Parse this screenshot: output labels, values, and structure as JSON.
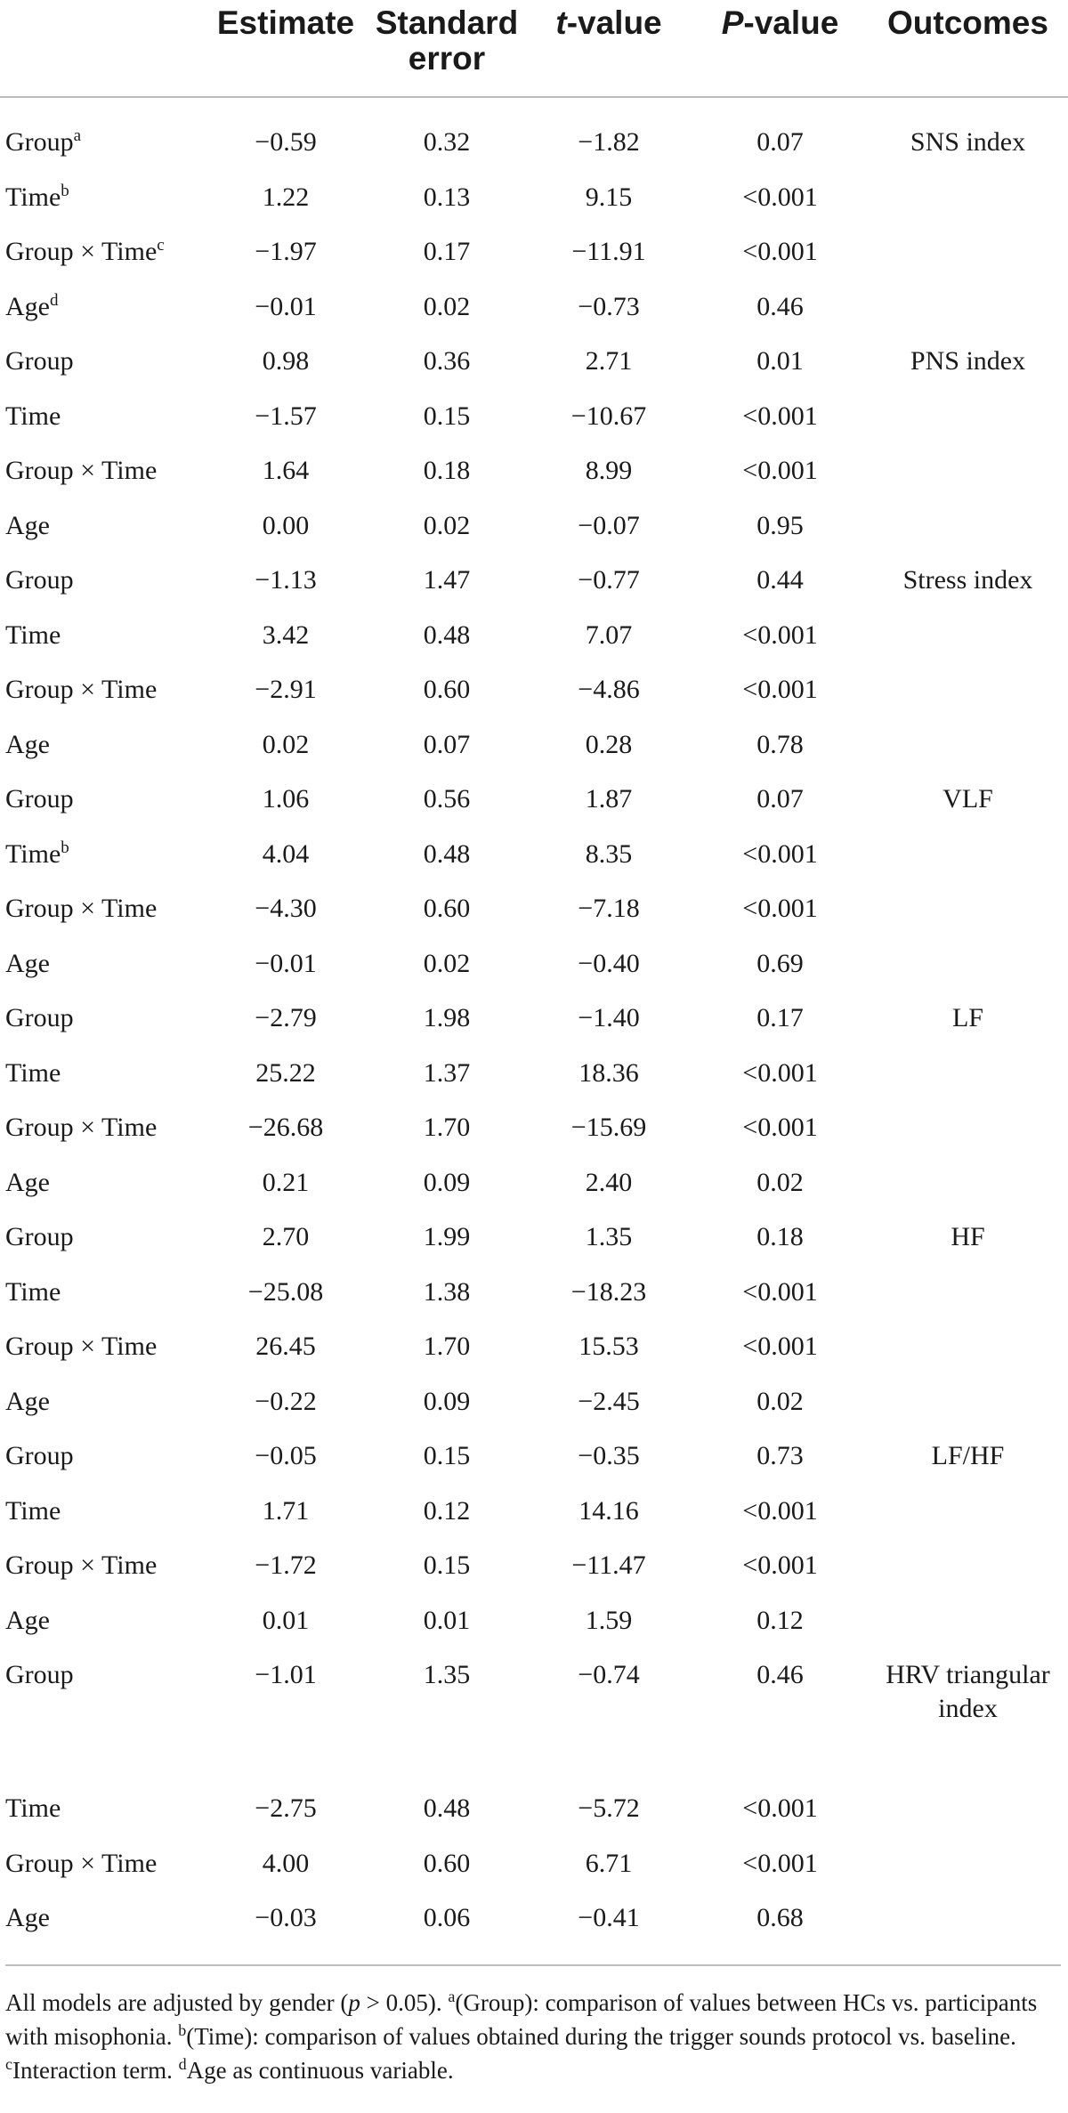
{
  "header": {
    "estimate": "Estimate",
    "standard_error": "Standard error",
    "t_value_prefix": "t",
    "t_value_suffix": "-value",
    "p_value_prefix": "P",
    "p_value_suffix": "-value",
    "outcomes": "Outcomes"
  },
  "rows": [
    {
      "term": "Group",
      "sup": "a",
      "estimate": "−0.59",
      "se": "0.32",
      "t": "−1.82",
      "p": "0.07",
      "outcome": "SNS index"
    },
    {
      "term": "Time",
      "sup": "b",
      "estimate": "1.22",
      "se": "0.13",
      "t": "9.15",
      "p": "<0.001",
      "outcome": ""
    },
    {
      "term": "Group × Time",
      "sup": "c",
      "estimate": "−1.97",
      "se": "0.17",
      "t": "−11.91",
      "p": "<0.001",
      "outcome": ""
    },
    {
      "term": "Age",
      "sup": "d",
      "estimate": "−0.01",
      "se": "0.02",
      "t": "−0.73",
      "p": "0.46",
      "outcome": ""
    },
    {
      "term": "Group",
      "sup": "",
      "estimate": "0.98",
      "se": "0.36",
      "t": "2.71",
      "p": "0.01",
      "outcome": "PNS index"
    },
    {
      "term": "Time",
      "sup": "",
      "estimate": "−1.57",
      "se": "0.15",
      "t": "−10.67",
      "p": "<0.001",
      "outcome": ""
    },
    {
      "term": "Group × Time",
      "sup": "",
      "estimate": "1.64",
      "se": "0.18",
      "t": "8.99",
      "p": "<0.001",
      "outcome": ""
    },
    {
      "term": "Age",
      "sup": "",
      "estimate": "0.00",
      "se": "0.02",
      "t": "−0.07",
      "p": "0.95",
      "outcome": ""
    },
    {
      "term": "Group",
      "sup": "",
      "estimate": "−1.13",
      "se": "1.47",
      "t": "−0.77",
      "p": "0.44",
      "outcome": "Stress index"
    },
    {
      "term": "Time",
      "sup": "",
      "estimate": "3.42",
      "se": "0.48",
      "t": "7.07",
      "p": "<0.001",
      "outcome": ""
    },
    {
      "term": "Group × Time",
      "sup": "",
      "estimate": "−2.91",
      "se": "0.60",
      "t": "−4.86",
      "p": "<0.001",
      "outcome": ""
    },
    {
      "term": "Age",
      "sup": "",
      "estimate": "0.02",
      "se": "0.07",
      "t": "0.28",
      "p": "0.78",
      "outcome": ""
    },
    {
      "term": "Group",
      "sup": "",
      "estimate": "1.06",
      "se": "0.56",
      "t": "1.87",
      "p": "0.07",
      "outcome": "VLF"
    },
    {
      "term": "Time",
      "sup": "b",
      "estimate": "4.04",
      "se": "0.48",
      "t": "8.35",
      "p": "<0.001",
      "outcome": ""
    },
    {
      "term": "Group × Time",
      "sup": "",
      "estimate": "−4.30",
      "se": "0.60",
      "t": "−7.18",
      "p": "<0.001",
      "outcome": ""
    },
    {
      "term": "Age",
      "sup": "",
      "estimate": "−0.01",
      "se": "0.02",
      "t": "−0.40",
      "p": "0.69",
      "outcome": ""
    },
    {
      "term": "Group",
      "sup": "",
      "estimate": "−2.79",
      "se": "1.98",
      "t": "−1.40",
      "p": "0.17",
      "outcome": "LF"
    },
    {
      "term": "Time",
      "sup": "",
      "estimate": "25.22",
      "se": "1.37",
      "t": "18.36",
      "p": "<0.001",
      "outcome": ""
    },
    {
      "term": "Group × Time",
      "sup": "",
      "estimate": "−26.68",
      "se": "1.70",
      "t": "−15.69",
      "p": "<0.001",
      "outcome": ""
    },
    {
      "term": "Age",
      "sup": "",
      "estimate": "0.21",
      "se": "0.09",
      "t": "2.40",
      "p": "0.02",
      "outcome": ""
    },
    {
      "term": "Group",
      "sup": "",
      "estimate": "2.70",
      "se": "1.99",
      "t": "1.35",
      "p": "0.18",
      "outcome": "HF"
    },
    {
      "term": "Time",
      "sup": "",
      "estimate": "−25.08",
      "se": "1.38",
      "t": "−18.23",
      "p": "<0.001",
      "outcome": ""
    },
    {
      "term": "Group × Time",
      "sup": "",
      "estimate": "26.45",
      "se": "1.70",
      "t": "15.53",
      "p": "<0.001",
      "outcome": ""
    },
    {
      "term": "Age",
      "sup": "",
      "estimate": "−0.22",
      "se": "0.09",
      "t": "−2.45",
      "p": "0.02",
      "outcome": ""
    },
    {
      "term": "Group",
      "sup": "",
      "estimate": "−0.05",
      "se": "0.15",
      "t": "−0.35",
      "p": "0.73",
      "outcome": "LF/HF"
    },
    {
      "term": "Time",
      "sup": "",
      "estimate": "1.71",
      "se": "0.12",
      "t": "14.16",
      "p": "<0.001",
      "outcome": ""
    },
    {
      "term": "Group × Time",
      "sup": "",
      "estimate": "−1.72",
      "se": "0.15",
      "t": "−11.47",
      "p": "<0.001",
      "outcome": ""
    },
    {
      "term": "Age",
      "sup": "",
      "estimate": "0.01",
      "se": "0.01",
      "t": "1.59",
      "p": "0.12",
      "outcome": ""
    },
    {
      "term": "Group",
      "sup": "",
      "estimate": "−1.01",
      "se": "1.35",
      "t": "−0.74",
      "p": "0.46",
      "outcome": "HRV triangular index",
      "tall": true
    },
    {
      "term": "Time",
      "sup": "",
      "estimate": "−2.75",
      "se": "0.48",
      "t": "−5.72",
      "p": "<0.001",
      "outcome": ""
    },
    {
      "term": "Group × Time",
      "sup": "",
      "estimate": "4.00",
      "se": "0.60",
      "t": "6.71",
      "p": "<0.001",
      "outcome": ""
    },
    {
      "term": "Age",
      "sup": "",
      "estimate": "−0.03",
      "se": "0.06",
      "t": "−0.41",
      "p": "0.68",
      "outcome": ""
    }
  ],
  "footnote": {
    "lead": "All models are adjusted by gender (",
    "p_symbol": "p",
    "lead_end": " > 0.05). ",
    "a_sup": "a",
    "a_text": "(Group): comparison of values between HCs vs. participants with misophonia. ",
    "b_sup": "b",
    "b_text": "(Time): comparison of values obtained during the trigger sounds protocol vs. baseline. ",
    "c_sup": "c",
    "c_text": "Interaction term. ",
    "d_sup": "d",
    "d_text": "Age as continuous variable."
  }
}
